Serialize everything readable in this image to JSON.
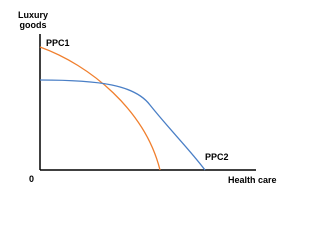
{
  "y_axis_label": "Luxury goods",
  "x_axis_label": "Health care",
  "origin_label": "0",
  "curves": [
    {
      "label": "PPC1",
      "color": "#f07f2e"
    },
    {
      "label": "PPC2",
      "color": "#4a7fc6"
    }
  ]
}
